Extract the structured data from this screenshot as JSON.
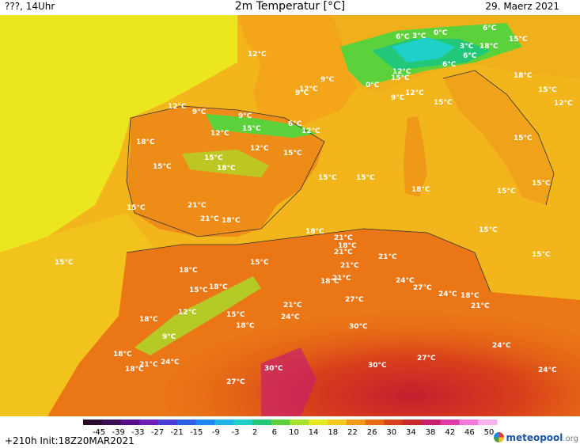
{
  "header": {
    "left": "???, 14Uhr",
    "title": "2m Temperatur [°C]",
    "date": "29. Maerz 2021"
  },
  "footer": {
    "run_info": "+210h  Init:18Z20MAR2021",
    "logo": "meteopool",
    "logo_suffix": ".org"
  },
  "legend": {
    "ticks": [
      "-45",
      "-39",
      "-33",
      "-27",
      "-21",
      "-15",
      "-9",
      "-3",
      "2",
      "6",
      "10",
      "14",
      "18",
      "22",
      "26",
      "30",
      "34",
      "38",
      "42",
      "46",
      "50"
    ],
    "colors": [
      "#2a0a2a",
      "#3a0d55",
      "#560e8a",
      "#6e1fb8",
      "#4b3ed6",
      "#2f5ee6",
      "#1e86f0",
      "#20b2e8",
      "#1fd0c8",
      "#22c77a",
      "#5bd23c",
      "#a8e02a",
      "#e6e81e",
      "#f4c81c",
      "#f29a18",
      "#e86a14",
      "#d8401a",
      "#c42a2a",
      "#c81f6a",
      "#e03aa8",
      "#f078d8",
      "#f8b0f0"
    ]
  },
  "map": {
    "icon": "temperature-map",
    "labels": [
      {
        "t": "12°C"
      },
      {
        "t": "12°C"
      },
      {
        "t": "9°C"
      },
      {
        "t": "9°C"
      },
      {
        "t": "12°C"
      },
      {
        "t": "9°C"
      },
      {
        "t": "6°C"
      },
      {
        "t": "12°C"
      },
      {
        "t": "15°C"
      },
      {
        "t": "12°C"
      },
      {
        "t": "18°C"
      },
      {
        "t": "15°C"
      },
      {
        "t": "15°C"
      },
      {
        "t": "18°C"
      },
      {
        "t": "15°C"
      },
      {
        "t": "15°C"
      },
      {
        "t": "15°C"
      },
      {
        "t": "18°C"
      },
      {
        "t": "15°C"
      },
      {
        "t": "21°C"
      },
      {
        "t": "21°C"
      },
      {
        "t": "18°C"
      },
      {
        "t": "15°C"
      },
      {
        "t": "18°C"
      },
      {
        "t": "21°C"
      },
      {
        "t": "18°C"
      },
      {
        "t": "21°C"
      },
      {
        "t": "21°C"
      },
      {
        "t": "21°C"
      },
      {
        "t": "21°C"
      },
      {
        "t": "15°C"
      },
      {
        "t": "18°C"
      },
      {
        "t": "15°C"
      },
      {
        "t": "18°C"
      },
      {
        "t": "18°C"
      },
      {
        "t": "18°C"
      },
      {
        "t": "21°C"
      },
      {
        "t": "24°C"
      },
      {
        "t": "24°C"
      },
      {
        "t": "27°C"
      },
      {
        "t": "27°C"
      },
      {
        "t": "24°C"
      },
      {
        "t": "18°C"
      },
      {
        "t": "21°C"
      },
      {
        "t": "12°C"
      },
      {
        "t": "15°C"
      },
      {
        "t": "18°C"
      },
      {
        "t": "9°C"
      },
      {
        "t": "18°C"
      },
      {
        "t": "18°C"
      },
      {
        "t": "21°C"
      },
      {
        "t": "24°C"
      },
      {
        "t": "30°C"
      },
      {
        "t": "27°C"
      },
      {
        "t": "24°C"
      },
      {
        "t": "30°C"
      },
      {
        "t": "30°C"
      },
      {
        "t": "27°C"
      },
      {
        "t": "24°C"
      },
      {
        "t": "6°C"
      },
      {
        "t": "3°C"
      },
      {
        "t": "0°C"
      },
      {
        "t": "6°C"
      },
      {
        "t": "15°C"
      },
      {
        "t": "3°C"
      },
      {
        "t": "6°C"
      },
      {
        "t": "18°C"
      },
      {
        "t": "9°C"
      },
      {
        "t": "0°C"
      },
      {
        "t": "12°C"
      },
      {
        "t": "15°C"
      },
      {
        "t": "9°C"
      },
      {
        "t": "12°C"
      },
      {
        "t": "15°C"
      },
      {
        "t": "6°C"
      },
      {
        "t": "18°C"
      },
      {
        "t": "15°C"
      },
      {
        "t": "12°C"
      },
      {
        "t": "15°C"
      },
      {
        "t": "15°C"
      },
      {
        "t": "15°C"
      },
      {
        "t": "15°C"
      },
      {
        "t": "15°C"
      },
      {
        "t": "12°C"
      }
    ]
  }
}
